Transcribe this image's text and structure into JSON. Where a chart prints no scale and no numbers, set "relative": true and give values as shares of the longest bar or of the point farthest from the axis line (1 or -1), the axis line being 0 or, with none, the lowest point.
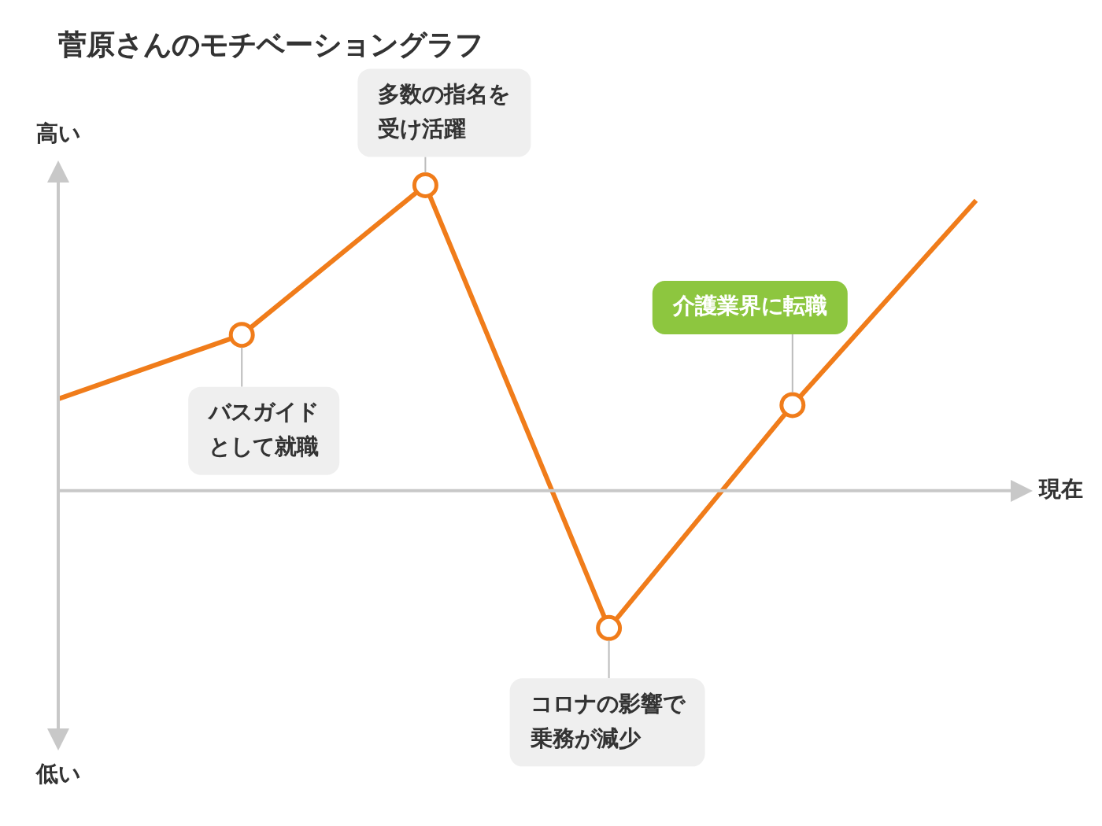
{
  "chart_data": {
    "type": "line",
    "title": "菅原さんのモチベーショングラフ",
    "xlabel": "現在",
    "relative": true,
    "tick_labels": false,
    "marker": "circle",
    "categories": [
      null,
      null,
      null,
      null,
      null,
      null
    ],
    "series": [
      {
        "color": "#f07c1a",
        "values": [
          0.3,
          0.51,
          1,
          -0.45,
          0.28,
          0.95
        ]
      }
    ],
    "annotations": [
      "高い",
      "低い",
      "バスガイドとして就職",
      "多数の指名を受け活躍",
      "コロナの影響で乗務が減少",
      "介護業界に転職"
    ]
  }
}
